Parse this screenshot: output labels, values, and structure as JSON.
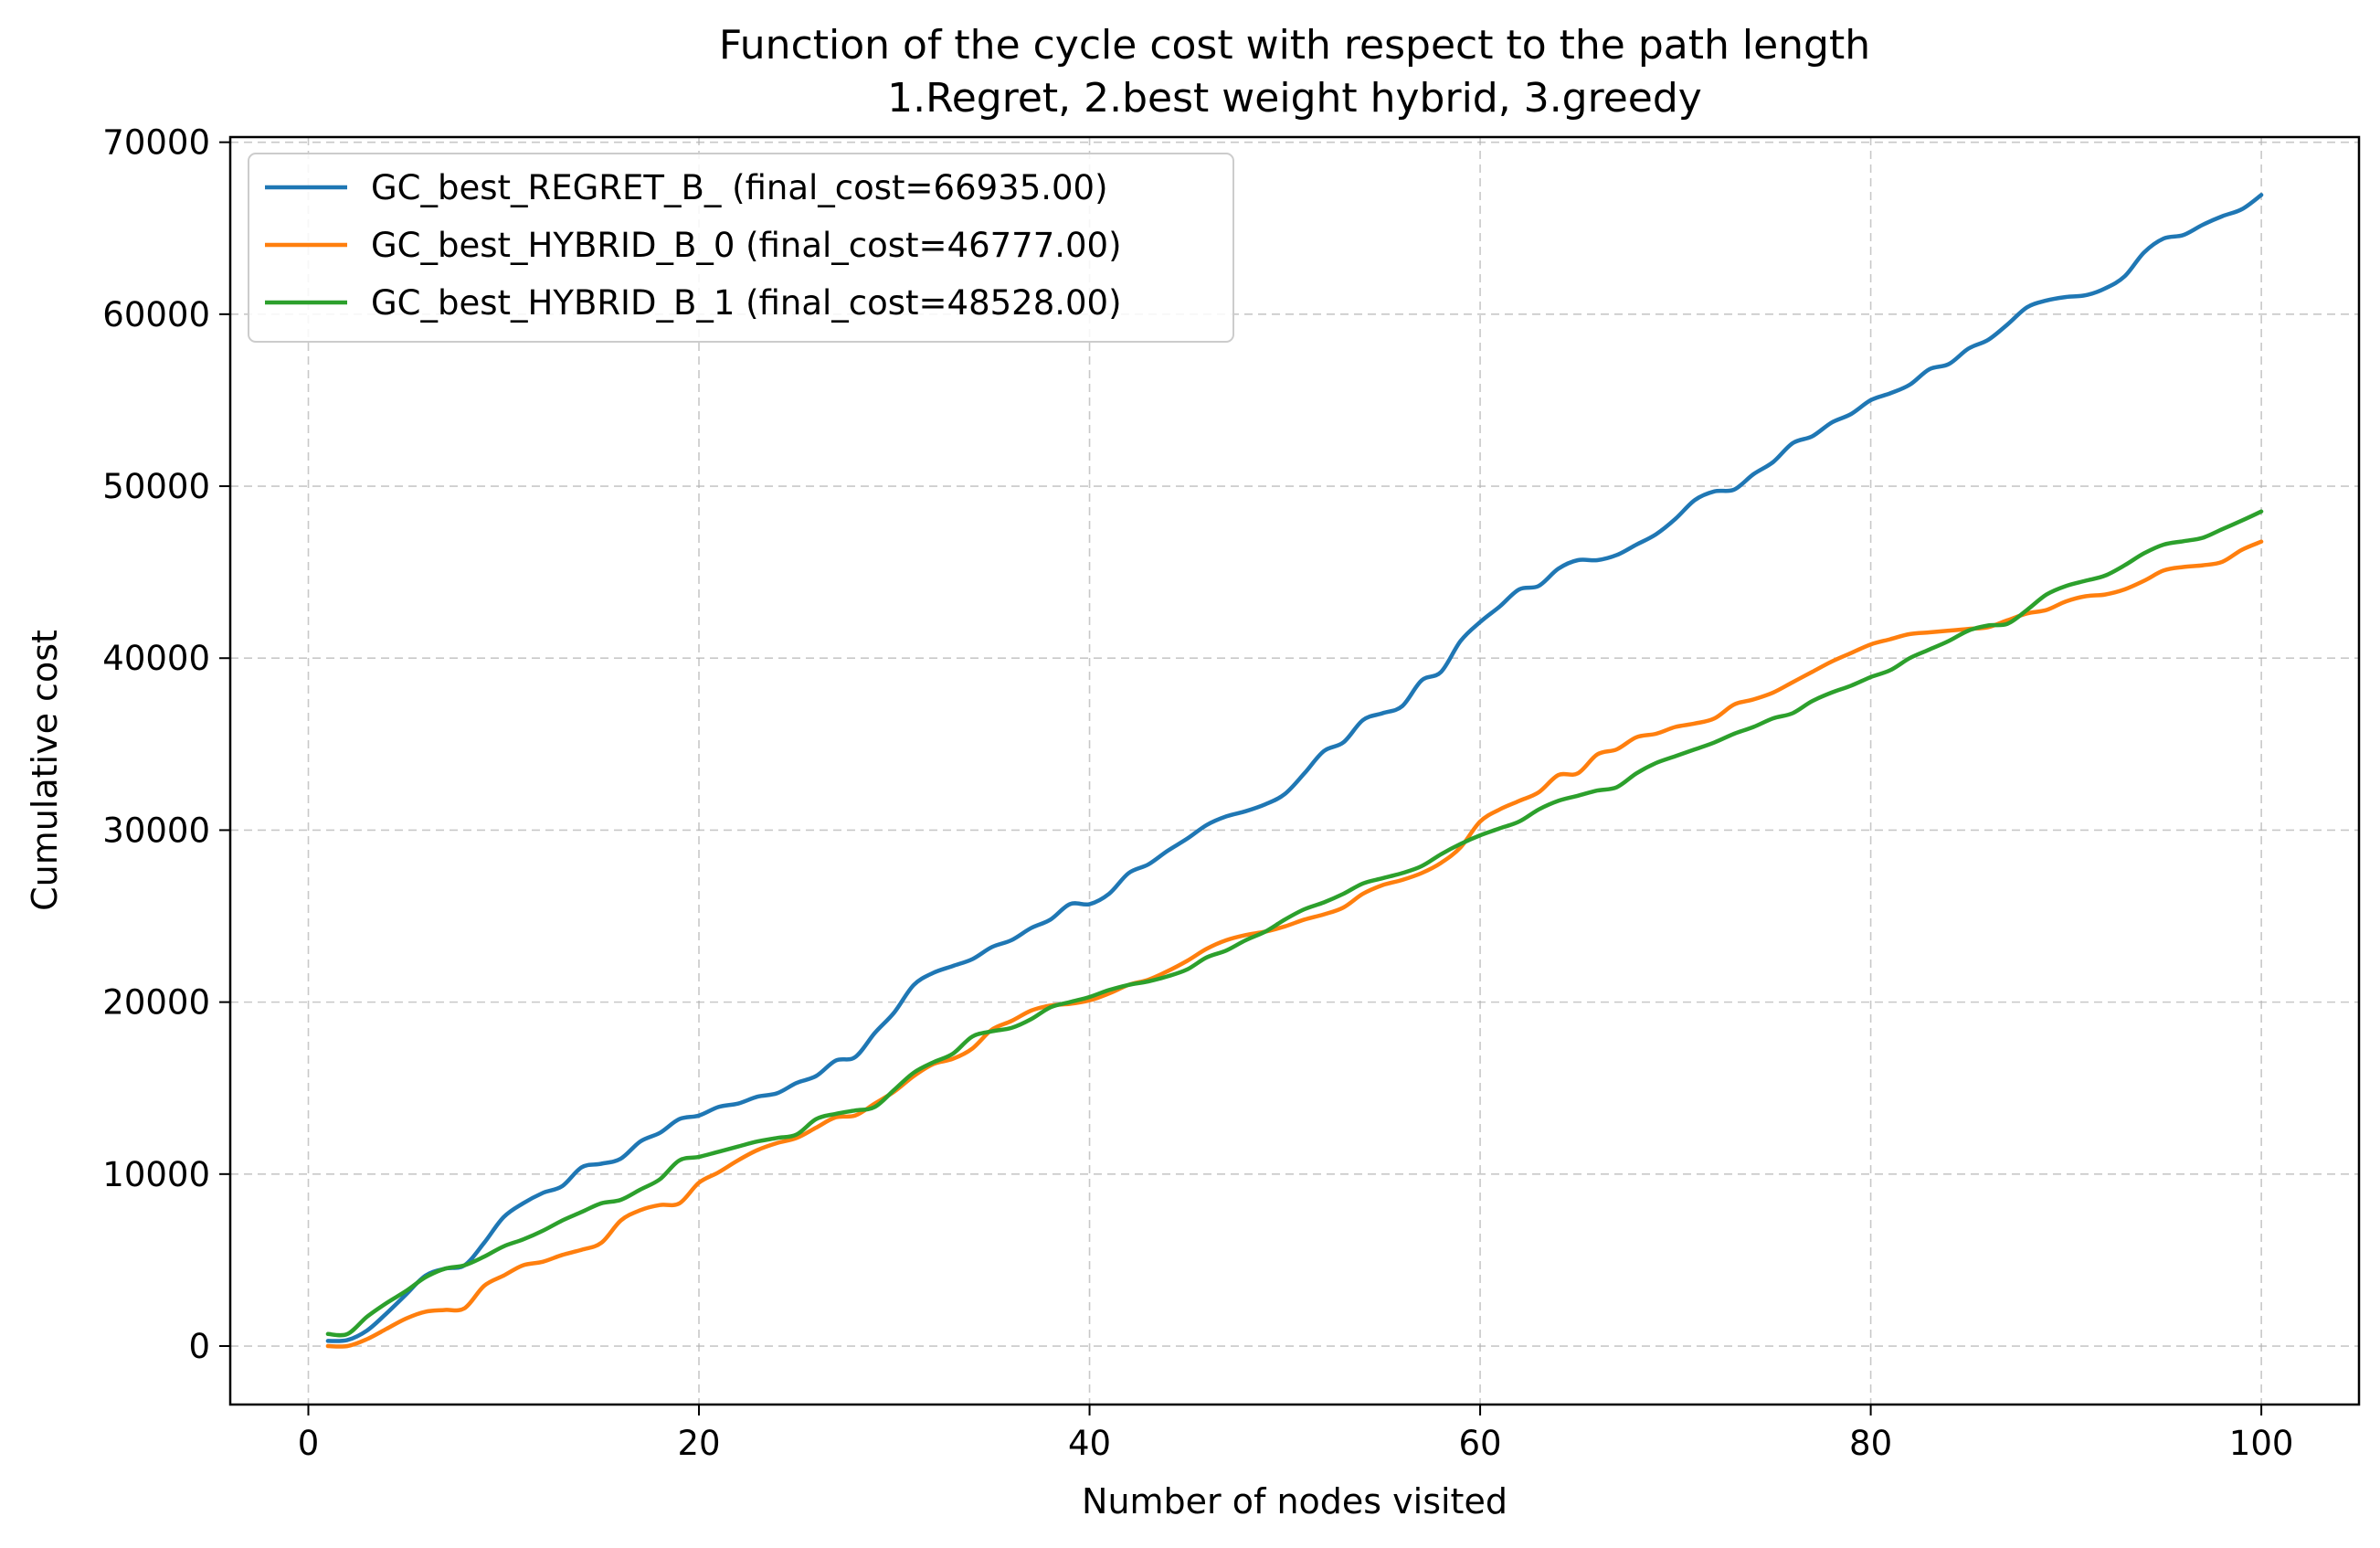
{
  "chart_data": {
    "type": "line",
    "title_lines": [
      "Function of the cycle cost with respect to the path length",
      "1.Regret, 2.best weight hybrid, 3.greedy"
    ],
    "xlabel": "Number of nodes visited",
    "ylabel": "Cumulative cost",
    "xlim": [
      -4,
      105
    ],
    "ylim": [
      -3400,
      70300
    ],
    "xticks": [
      0,
      20,
      40,
      60,
      80,
      100
    ],
    "yticks": [
      0,
      10000,
      20000,
      30000,
      40000,
      50000,
      60000,
      70000
    ],
    "grid": true,
    "legend_position": "top-left",
    "series": [
      {
        "name": "GC_best_REGRET_B_ (final_cost=66935.00)",
        "color": "#1f77b4",
        "points": [
          [
            1,
            300
          ],
          [
            2,
            350
          ],
          [
            3,
            900
          ],
          [
            4,
            1900
          ],
          [
            5,
            3000
          ],
          [
            6,
            4100
          ],
          [
            7,
            4500
          ],
          [
            8,
            4700
          ],
          [
            9,
            6000
          ],
          [
            10,
            7500
          ],
          [
            11,
            8300
          ],
          [
            12,
            8900
          ],
          [
            13,
            9300
          ],
          [
            14,
            10400
          ],
          [
            15,
            10600
          ],
          [
            16,
            10900
          ],
          [
            17,
            11900
          ],
          [
            18,
            12400
          ],
          [
            19,
            13200
          ],
          [
            20,
            13400
          ],
          [
            21,
            13900
          ],
          [
            22,
            14100
          ],
          [
            23,
            14500
          ],
          [
            24,
            14700
          ],
          [
            25,
            15300
          ],
          [
            26,
            15700
          ],
          [
            27,
            16600
          ],
          [
            28,
            16800
          ],
          [
            29,
            18200
          ],
          [
            30,
            19400
          ],
          [
            31,
            21000
          ],
          [
            32,
            21700
          ],
          [
            33,
            22100
          ],
          [
            34,
            22500
          ],
          [
            35,
            23200
          ],
          [
            36,
            23600
          ],
          [
            37,
            24300
          ],
          [
            38,
            24800
          ],
          [
            39,
            25700
          ],
          [
            40,
            25700
          ],
          [
            41,
            26300
          ],
          [
            42,
            27500
          ],
          [
            43,
            28000
          ],
          [
            44,
            28800
          ],
          [
            45,
            29500
          ],
          [
            46,
            30300
          ],
          [
            47,
            30800
          ],
          [
            48,
            31100
          ],
          [
            49,
            31500
          ],
          [
            50,
            32100
          ],
          [
            51,
            33300
          ],
          [
            52,
            34600
          ],
          [
            53,
            35100
          ],
          [
            54,
            36400
          ],
          [
            55,
            36800
          ],
          [
            56,
            37200
          ],
          [
            57,
            38700
          ],
          [
            58,
            39200
          ],
          [
            59,
            41000
          ],
          [
            60,
            42100
          ],
          [
            61,
            43000
          ],
          [
            62,
            44000
          ],
          [
            63,
            44200
          ],
          [
            64,
            45200
          ],
          [
            65,
            45700
          ],
          [
            66,
            45700
          ],
          [
            67,
            46000
          ],
          [
            68,
            46600
          ],
          [
            69,
            47200
          ],
          [
            70,
            48100
          ],
          [
            71,
            49200
          ],
          [
            72,
            49700
          ],
          [
            73,
            49800
          ],
          [
            74,
            50700
          ],
          [
            75,
            51400
          ],
          [
            76,
            52500
          ],
          [
            77,
            52900
          ],
          [
            78,
            53700
          ],
          [
            79,
            54200
          ],
          [
            80,
            55000
          ],
          [
            81,
            55400
          ],
          [
            82,
            55900
          ],
          [
            83,
            56800
          ],
          [
            84,
            57100
          ],
          [
            85,
            58000
          ],
          [
            86,
            58500
          ],
          [
            87,
            59400
          ],
          [
            88,
            60400
          ],
          [
            89,
            60800
          ],
          [
            90,
            61000
          ],
          [
            91,
            61100
          ],
          [
            92,
            61500
          ],
          [
            93,
            62200
          ],
          [
            94,
            63600
          ],
          [
            95,
            64400
          ],
          [
            96,
            64600
          ],
          [
            97,
            65200
          ],
          [
            98,
            65700
          ],
          [
            99,
            66100
          ],
          [
            100,
            66935
          ]
        ]
      },
      {
        "name": "GC_best_HYBRID_B_0 (final_cost=46777.00)",
        "color": "#ff7f0e",
        "points": [
          [
            1,
            0
          ],
          [
            2,
            0
          ],
          [
            3,
            400
          ],
          [
            4,
            1000
          ],
          [
            5,
            1600
          ],
          [
            6,
            2000
          ],
          [
            7,
            2100
          ],
          [
            8,
            2200
          ],
          [
            9,
            3500
          ],
          [
            10,
            4100
          ],
          [
            11,
            4700
          ],
          [
            12,
            4900
          ],
          [
            13,
            5300
          ],
          [
            14,
            5600
          ],
          [
            15,
            6000
          ],
          [
            16,
            7300
          ],
          [
            17,
            7900
          ],
          [
            18,
            8200
          ],
          [
            19,
            8300
          ],
          [
            20,
            9500
          ],
          [
            21,
            10100
          ],
          [
            22,
            10800
          ],
          [
            23,
            11400
          ],
          [
            24,
            11800
          ],
          [
            25,
            12100
          ],
          [
            26,
            12700
          ],
          [
            27,
            13300
          ],
          [
            28,
            13400
          ],
          [
            29,
            14100
          ],
          [
            30,
            14800
          ],
          [
            31,
            15700
          ],
          [
            32,
            16400
          ],
          [
            33,
            16700
          ],
          [
            34,
            17300
          ],
          [
            35,
            18400
          ],
          [
            36,
            18900
          ],
          [
            37,
            19500
          ],
          [
            38,
            19800
          ],
          [
            39,
            19900
          ],
          [
            40,
            20100
          ],
          [
            41,
            20500
          ],
          [
            42,
            21000
          ],
          [
            43,
            21300
          ],
          [
            44,
            21800
          ],
          [
            45,
            22400
          ],
          [
            46,
            23100
          ],
          [
            47,
            23600
          ],
          [
            48,
            23900
          ],
          [
            49,
            24100
          ],
          [
            50,
            24400
          ],
          [
            51,
            24800
          ],
          [
            52,
            25100
          ],
          [
            53,
            25500
          ],
          [
            54,
            26300
          ],
          [
            55,
            26800
          ],
          [
            56,
            27100
          ],
          [
            57,
            27500
          ],
          [
            58,
            28100
          ],
          [
            59,
            29000
          ],
          [
            60,
            30500
          ],
          [
            61,
            31200
          ],
          [
            62,
            31700
          ],
          [
            63,
            32200
          ],
          [
            64,
            33200
          ],
          [
            65,
            33300
          ],
          [
            66,
            34400
          ],
          [
            67,
            34700
          ],
          [
            68,
            35400
          ],
          [
            69,
            35600
          ],
          [
            70,
            36000
          ],
          [
            71,
            36200
          ],
          [
            72,
            36500
          ],
          [
            73,
            37300
          ],
          [
            74,
            37600
          ],
          [
            75,
            38000
          ],
          [
            76,
            38600
          ],
          [
            77,
            39200
          ],
          [
            78,
            39800
          ],
          [
            79,
            40300
          ],
          [
            80,
            40800
          ],
          [
            81,
            41100
          ],
          [
            82,
            41400
          ],
          [
            83,
            41500
          ],
          [
            84,
            41600
          ],
          [
            85,
            41700
          ],
          [
            86,
            41800
          ],
          [
            87,
            42200
          ],
          [
            88,
            42600
          ],
          [
            89,
            42800
          ],
          [
            90,
            43300
          ],
          [
            91,
            43600
          ],
          [
            92,
            43700
          ],
          [
            93,
            44000
          ],
          [
            94,
            44500
          ],
          [
            95,
            45100
          ],
          [
            96,
            45300
          ],
          [
            97,
            45400
          ],
          [
            98,
            45600
          ],
          [
            99,
            46300
          ],
          [
            100,
            46777
          ]
        ]
      },
      {
        "name": "GC_best_HYBRID_B_1 (final_cost=48528.00)",
        "color": "#2ca02c",
        "points": [
          [
            1,
            700
          ],
          [
            2,
            700
          ],
          [
            3,
            1700
          ],
          [
            4,
            2500
          ],
          [
            5,
            3200
          ],
          [
            6,
            4000
          ],
          [
            7,
            4500
          ],
          [
            8,
            4700
          ],
          [
            9,
            5200
          ],
          [
            10,
            5800
          ],
          [
            11,
            6200
          ],
          [
            12,
            6700
          ],
          [
            13,
            7300
          ],
          [
            14,
            7800
          ],
          [
            15,
            8300
          ],
          [
            16,
            8500
          ],
          [
            17,
            9100
          ],
          [
            18,
            9700
          ],
          [
            19,
            10800
          ],
          [
            20,
            11000
          ],
          [
            21,
            11300
          ],
          [
            22,
            11600
          ],
          [
            23,
            11900
          ],
          [
            24,
            12100
          ],
          [
            25,
            12300
          ],
          [
            26,
            13200
          ],
          [
            27,
            13500
          ],
          [
            28,
            13700
          ],
          [
            29,
            13900
          ],
          [
            30,
            14900
          ],
          [
            31,
            15900
          ],
          [
            32,
            16500
          ],
          [
            33,
            17000
          ],
          [
            34,
            18000
          ],
          [
            35,
            18300
          ],
          [
            36,
            18500
          ],
          [
            37,
            19000
          ],
          [
            38,
            19700
          ],
          [
            39,
            20000
          ],
          [
            40,
            20300
          ],
          [
            41,
            20700
          ],
          [
            42,
            21000
          ],
          [
            43,
            21200
          ],
          [
            44,
            21500
          ],
          [
            45,
            21900
          ],
          [
            46,
            22600
          ],
          [
            47,
            23000
          ],
          [
            48,
            23600
          ],
          [
            49,
            24100
          ],
          [
            50,
            24800
          ],
          [
            51,
            25400
          ],
          [
            52,
            25800
          ],
          [
            53,
            26300
          ],
          [
            54,
            26900
          ],
          [
            55,
            27200
          ],
          [
            56,
            27500
          ],
          [
            57,
            27900
          ],
          [
            58,
            28600
          ],
          [
            59,
            29200
          ],
          [
            60,
            29700
          ],
          [
            61,
            30100
          ],
          [
            62,
            30500
          ],
          [
            63,
            31200
          ],
          [
            64,
            31700
          ],
          [
            65,
            32000
          ],
          [
            66,
            32300
          ],
          [
            67,
            32500
          ],
          [
            68,
            33300
          ],
          [
            69,
            33900
          ],
          [
            70,
            34300
          ],
          [
            71,
            34700
          ],
          [
            72,
            35100
          ],
          [
            73,
            35600
          ],
          [
            74,
            36000
          ],
          [
            75,
            36500
          ],
          [
            76,
            36800
          ],
          [
            77,
            37500
          ],
          [
            78,
            38000
          ],
          [
            79,
            38400
          ],
          [
            80,
            38900
          ],
          [
            81,
            39300
          ],
          [
            82,
            40000
          ],
          [
            83,
            40500
          ],
          [
            84,
            41000
          ],
          [
            85,
            41600
          ],
          [
            86,
            41900
          ],
          [
            87,
            42000
          ],
          [
            88,
            42800
          ],
          [
            89,
            43700
          ],
          [
            90,
            44200
          ],
          [
            91,
            44500
          ],
          [
            92,
            44800
          ],
          [
            93,
            45400
          ],
          [
            94,
            46100
          ],
          [
            95,
            46600
          ],
          [
            96,
            46800
          ],
          [
            97,
            47000
          ],
          [
            98,
            47500
          ],
          [
            99,
            48000
          ],
          [
            100,
            48528
          ]
        ]
      }
    ]
  }
}
